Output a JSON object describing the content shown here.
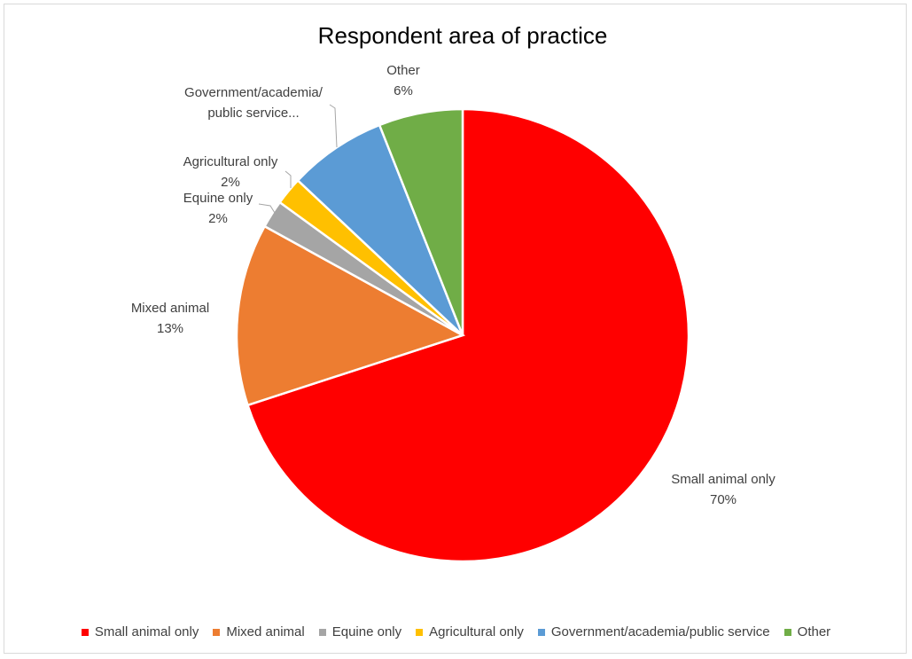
{
  "chart_data": {
    "type": "pie",
    "title": "Respondent area of practice",
    "slices": [
      {
        "name": "Small animal only",
        "label": [
          "Small animal only",
          "70%"
        ],
        "value": 70,
        "color": "#ff0000"
      },
      {
        "name": "Mixed animal",
        "label": [
          "Mixed animal",
          "13%"
        ],
        "value": 13,
        "color": "#ed7d31"
      },
      {
        "name": "Equine only",
        "label": [
          "Equine only",
          "2%"
        ],
        "value": 2,
        "color": "#a5a5a5"
      },
      {
        "name": "Agricultural only",
        "label": [
          "Agricultural only",
          "2%"
        ],
        "value": 2,
        "color": "#ffc000"
      },
      {
        "name": "Government/academia/public service",
        "label": [
          "Government/academia/",
          "public service..."
        ],
        "value": 7,
        "color": "#5b9bd5"
      },
      {
        "name": "Other",
        "label": [
          "Other",
          "6%"
        ],
        "value": 6,
        "color": "#70ad47"
      }
    ],
    "legend_position": "bottom"
  }
}
